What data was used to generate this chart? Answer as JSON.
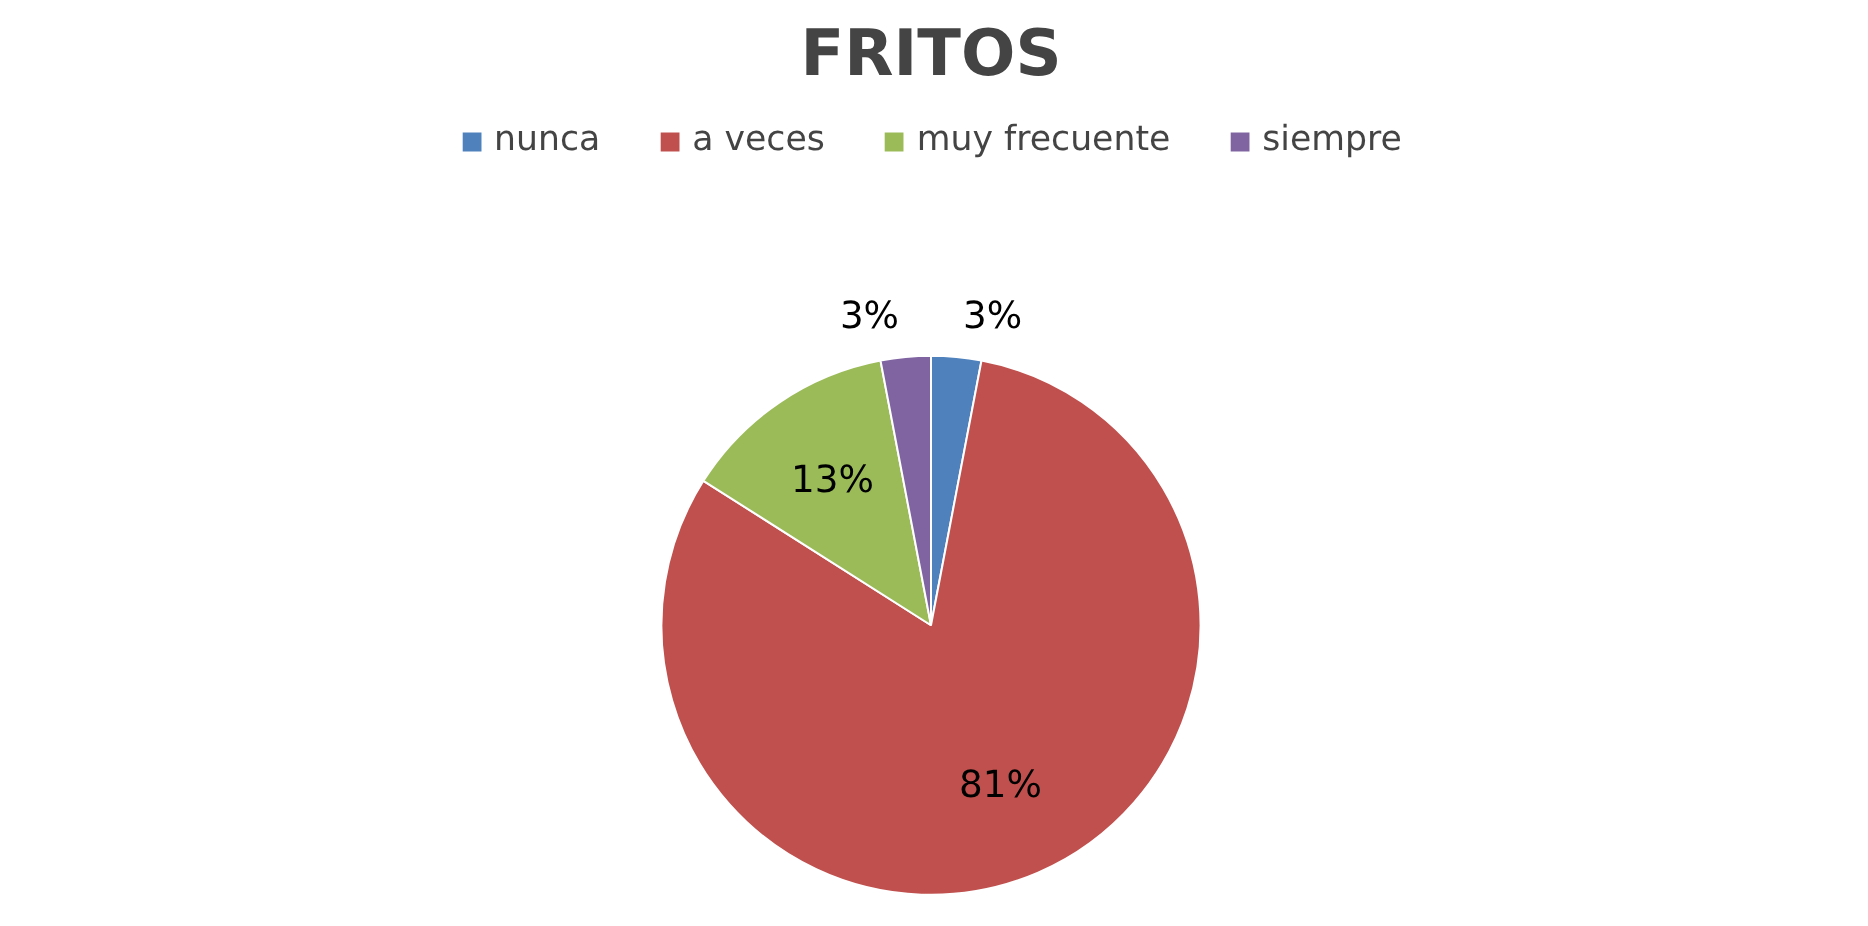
{
  "chart_data": {
    "type": "pie",
    "title": "FRITOS",
    "categories": [
      "nunca",
      "a veces",
      "muy frecuente",
      "siempre"
    ],
    "values": [
      3,
      81,
      13,
      3
    ],
    "colors": [
      "#4f81bd",
      "#c0504d",
      "#9bbb59",
      "#8064a2"
    ],
    "value_labels": [
      "3%",
      "81%",
      "13%",
      "3%"
    ],
    "legend": "top"
  }
}
